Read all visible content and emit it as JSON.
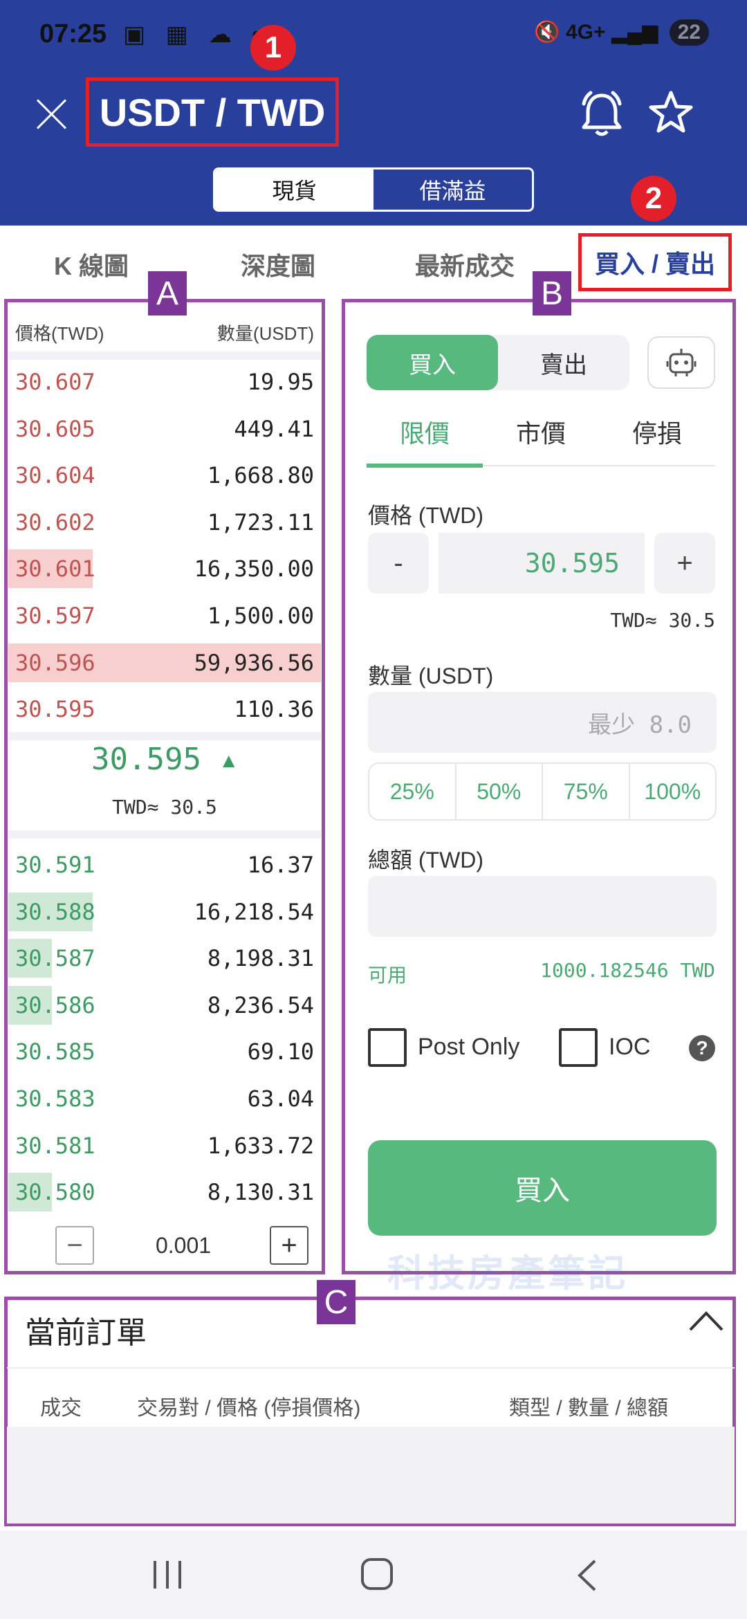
{
  "status_bar": {
    "time": "07:25",
    "network": "4G+",
    "battery": "22"
  },
  "header": {
    "pair": "USDT / TWD",
    "segments": [
      "現貨",
      "借滿益"
    ],
    "active_segment": "現貨"
  },
  "annotations": {
    "badge1": "1",
    "badge2": "2",
    "labelA": "A",
    "labelB": "B",
    "labelC": "C"
  },
  "tabs": [
    "K 線圖",
    "深度圖",
    "最新成交",
    "買入 / 賣出"
  ],
  "orderbook": {
    "head_price": "價格(TWD)",
    "head_qty": "數量(USDT)",
    "asks": [
      {
        "price": "30.607",
        "qty": "19.95",
        "depth": 0
      },
      {
        "price": "30.605",
        "qty": "449.41",
        "depth": 0
      },
      {
        "price": "30.604",
        "qty": "1,668.80",
        "depth": 0
      },
      {
        "price": "30.602",
        "qty": "1,723.11",
        "depth": 0
      },
      {
        "price": "30.601",
        "qty": "16,350.00",
        "depth": 0.27
      },
      {
        "price": "30.597",
        "qty": "1,500.00",
        "depth": 0
      },
      {
        "price": "30.596",
        "qty": "59,936.56",
        "depth": 1.0
      },
      {
        "price": "30.595",
        "qty": "110.36",
        "depth": 0
      }
    ],
    "mid_price": "30.595 ▴",
    "mid_sub": "TWD≈ 30.5",
    "bids": [
      {
        "price": "30.591",
        "qty": "16.37",
        "depth": 0
      },
      {
        "price": "30.588",
        "qty": "16,218.54",
        "depth": 0.27
      },
      {
        "price": "30.587",
        "qty": "8,198.31",
        "depth": 0.14
      },
      {
        "price": "30.586",
        "qty": "8,236.54",
        "depth": 0.14
      },
      {
        "price": "30.585",
        "qty": "69.10",
        "depth": 0
      },
      {
        "price": "30.583",
        "qty": "63.04",
        "depth": 0
      },
      {
        "price": "30.581",
        "qty": "1,633.72",
        "depth": 0
      },
      {
        "price": "30.580",
        "qty": "8,130.31",
        "depth": 0.14
      }
    ],
    "step_minus": "−",
    "step_value": "0.001",
    "step_plus": "+"
  },
  "trade": {
    "buy_label": "買入",
    "sell_label": "賣出",
    "order_types": [
      "限價",
      "市價",
      "停損"
    ],
    "active_order_type": "限價",
    "price_label": "價格 (TWD)",
    "minus": "-",
    "price_value": "30.595",
    "plus": "+",
    "price_hint": "TWD≈ 30.5",
    "qty_label": "數量 (USDT)",
    "qty_placeholder": "最少 8.0",
    "percents": [
      "25%",
      "50%",
      "75%",
      "100%"
    ],
    "total_label": "總額 (TWD)",
    "available_label": "可用",
    "available_value": "1000.182546 TWD",
    "post_only": "Post Only",
    "ioc": "IOC",
    "help": "?",
    "submit": "買入",
    "accent": "#58b97f"
  },
  "current_orders": {
    "title": "當前訂單",
    "col1": "成交",
    "col2": "交易對 / 價格 (停損價格)",
    "col3": "類型 / 數量 / 總額"
  },
  "watermark": "科技房產筆記",
  "colors": {
    "header": "#283f9c",
    "annotation_red": "#e3202a",
    "frame_purple": "#9a4ea5",
    "ask": "#c0524f",
    "bid": "#3c9a63"
  }
}
